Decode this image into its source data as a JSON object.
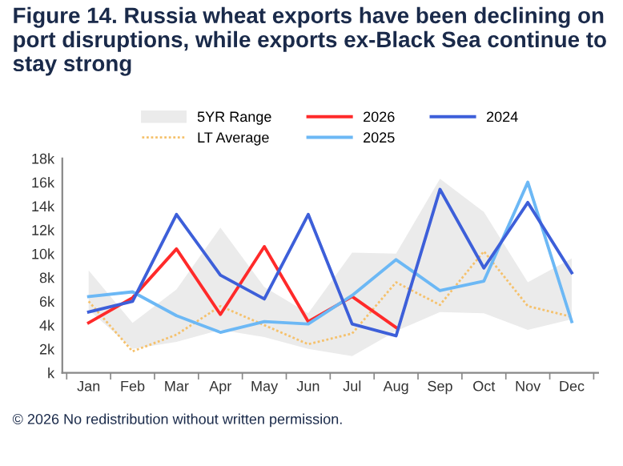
{
  "chart_data": {
    "type": "line",
    "title": "Figure 14. Russia wheat exports have been declining on port disruptions, while exports ex-Black Sea continue to stay strong",
    "categories": [
      "Jan",
      "Feb",
      "Mar",
      "Apr",
      "May",
      "Jun",
      "Jul",
      "Aug",
      "Sep",
      "Oct",
      "Nov",
      "Dec"
    ],
    "series": [
      {
        "name": "5YR Range",
        "type": "area",
        "color": "#ebebeb",
        "lower": [
          5.3,
          2.0,
          2.6,
          3.6,
          3.0,
          2.0,
          1.4,
          3.5,
          5.1,
          5.0,
          3.6,
          4.5
        ],
        "upper": [
          8.6,
          4.2,
          7.0,
          12.2,
          7.2,
          5.0,
          10.1,
          10.0,
          16.3,
          13.5,
          7.6,
          9.6
        ],
        "values": [
          null,
          null,
          null,
          null,
          null,
          null,
          null,
          null,
          null,
          null,
          null,
          null
        ]
      },
      {
        "name": "LT Average",
        "color": "#f5c16c",
        "line_style": "dotted",
        "values": [
          6.0,
          1.8,
          3.2,
          5.6,
          4.0,
          2.4,
          3.3,
          7.6,
          5.7,
          10.2,
          5.6,
          4.7
        ]
      },
      {
        "name": "2026",
        "color": "#ff2a2a",
        "values": [
          4.2,
          6.3,
          10.4,
          4.9,
          10.6,
          4.3,
          6.4,
          3.8,
          null,
          null,
          null,
          null
        ]
      },
      {
        "name": "2025",
        "color": "#6cb8f5",
        "values": [
          6.4,
          6.8,
          4.8,
          3.4,
          4.3,
          4.1,
          6.5,
          9.5,
          6.9,
          7.7,
          16.0,
          4.3
        ]
      },
      {
        "name": "2024",
        "color": "#3d5fd9",
        "values": [
          5.1,
          6.0,
          13.3,
          8.2,
          6.2,
          13.3,
          4.1,
          3.1,
          15.4,
          8.8,
          14.3,
          8.4
        ]
      }
    ],
    "ylim": [
      0,
      18
    ],
    "yticks": [
      {
        "value": 0,
        "label": "k"
      },
      {
        "value": 2,
        "label": "2k"
      },
      {
        "value": 4,
        "label": "4k"
      },
      {
        "value": 6,
        "label": "6k"
      },
      {
        "value": 8,
        "label": "8k"
      },
      {
        "value": 10,
        "label": "10k"
      },
      {
        "value": 12,
        "label": "12k"
      },
      {
        "value": 14,
        "label": "14k"
      },
      {
        "value": 16,
        "label": "16k"
      },
      {
        "value": 18,
        "label": "18k"
      }
    ],
    "legend": "top",
    "grid": false,
    "annotations": [
      "© 2026 No redistribution without written permission."
    ]
  }
}
